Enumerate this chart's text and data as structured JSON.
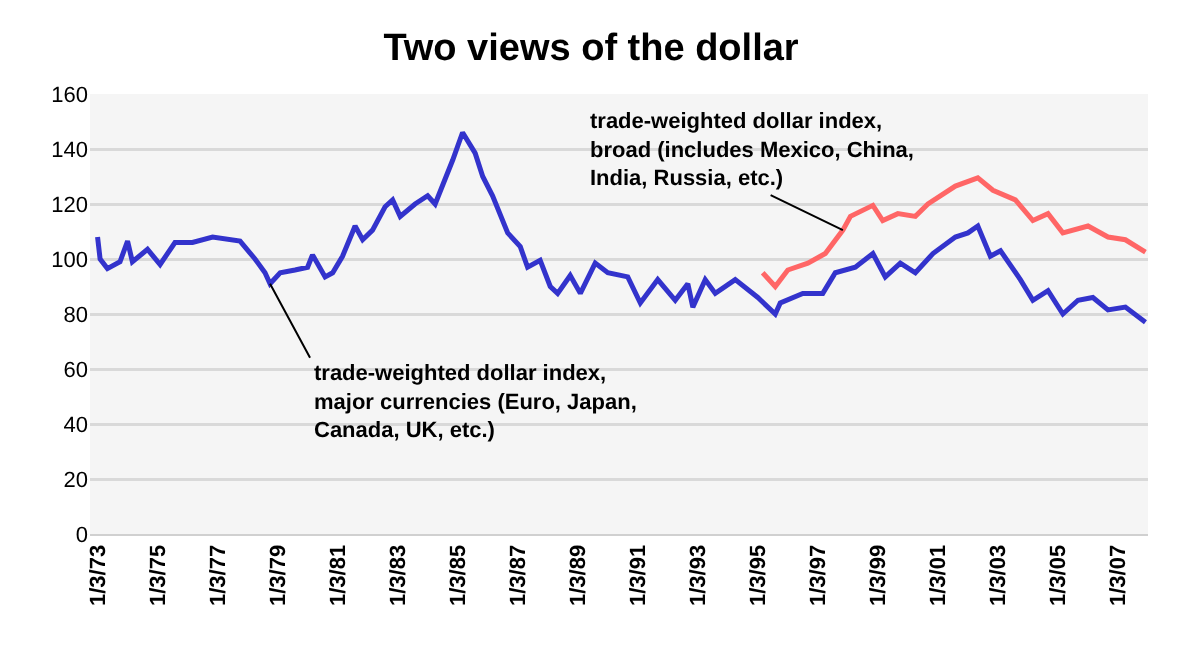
{
  "chart_data": {
    "type": "line",
    "title": "Two views of the dollar",
    "xlim": [
      "1972-10",
      "2008-01"
    ],
    "xticks": [
      {
        "value": "1973-01-03",
        "label": "1/3/73"
      },
      {
        "value": "1975-01-03",
        "label": "1/3/75"
      },
      {
        "value": "1977-01-03",
        "label": "1/3/77"
      },
      {
        "value": "1979-01-03",
        "label": "1/3/79"
      },
      {
        "value": "1981-01-03",
        "label": "1/3/81"
      },
      {
        "value": "1983-01-03",
        "label": "1/3/83"
      },
      {
        "value": "1985-01-03",
        "label": "1/3/85"
      },
      {
        "value": "1987-01-03",
        "label": "1/3/87"
      },
      {
        "value": "1989-01-03",
        "label": "1/3/89"
      },
      {
        "value": "1991-01-03",
        "label": "1/3/91"
      },
      {
        "value": "1993-01-03",
        "label": "1/3/93"
      },
      {
        "value": "1995-01-03",
        "label": "1/3/95"
      },
      {
        "value": "1997-01-03",
        "label": "1/3/97"
      },
      {
        "value": "1999-01-03",
        "label": "1/3/99"
      },
      {
        "value": "2001-01-03",
        "label": "1/3/01"
      },
      {
        "value": "2003-01-03",
        "label": "1/3/03"
      },
      {
        "value": "2005-01-03",
        "label": "1/3/05"
      },
      {
        "value": "2007-01-03",
        "label": "1/3/07"
      }
    ],
    "ylim": [
      0,
      160
    ],
    "yticks": [
      0,
      20,
      40,
      60,
      80,
      100,
      120,
      140,
      160
    ],
    "grid": "y",
    "marker": "none",
    "line_style": "solid",
    "series": [
      {
        "color": "#3333cc",
        "x": [
          "1973-01",
          "1973-02",
          "1973-05",
          "1973-10",
          "1974-01",
          "1974-03",
          "1974-09",
          "1975-02",
          "1975-08",
          "1976-03",
          "1976-11",
          "1977-10",
          "1978-04",
          "1978-08",
          "1978-10",
          "1979-02",
          "1979-08",
          "1980-01",
          "1980-03",
          "1980-08",
          "1980-11",
          "1981-03",
          "1981-08",
          "1981-11",
          "1982-03",
          "1982-08",
          "1982-11",
          "1983-02",
          "1983-08",
          "1984-01",
          "1984-04",
          "1984-11",
          "1985-03",
          "1985-08",
          "1985-11",
          "1986-03",
          "1986-09",
          "1987-02",
          "1987-05",
          "1987-10",
          "1988-02",
          "1988-05",
          "1988-10",
          "1989-02",
          "1989-08",
          "1990-01",
          "1990-09",
          "1991-02",
          "1991-09",
          "1992-04",
          "1992-09",
          "1992-11",
          "1993-04",
          "1993-08",
          "1994-04",
          "1995-01",
          "1995-08",
          "1995-10",
          "1996-07",
          "1997-03",
          "1997-08",
          "1998-04",
          "1998-11",
          "1999-04",
          "1999-10",
          "2000-04",
          "2000-11",
          "2001-08",
          "2002-01",
          "2002-05",
          "2002-10",
          "2003-02",
          "2003-10",
          "2004-03",
          "2004-09",
          "2005-03",
          "2005-09",
          "2006-03",
          "2006-09",
          "2007-04",
          "2007-12"
        ],
        "values": [
          108,
          100,
          96.5,
          99,
          106.5,
          99,
          103.5,
          98,
          106,
          106,
          108,
          106.5,
          100,
          95,
          91,
          95,
          96,
          97,
          101.5,
          93.5,
          95,
          101,
          112,
          107,
          110.5,
          119,
          121.5,
          115.5,
          120,
          123,
          120,
          136,
          146,
          138.5,
          130,
          123,
          109.5,
          104.5,
          97,
          99.5,
          90,
          87.5,
          94,
          87.5,
          98.5,
          95,
          93.5,
          84,
          92.5,
          85,
          91,
          82.5,
          92.5,
          87.5,
          92.5,
          86,
          80,
          84,
          87.5,
          87.5,
          95,
          97,
          102,
          93.5,
          98.5,
          95,
          102,
          108,
          109.5,
          112,
          101,
          103,
          92.5,
          85,
          88.5,
          80,
          85,
          86,
          81.5,
          82.5,
          77
        ]
      },
      {
        "color": "#ff6666",
        "x": [
          "1995-03",
          "1995-08",
          "1996-01",
          "1996-09",
          "1997-04",
          "1997-11",
          "1998-02",
          "1998-11",
          "1999-03",
          "1999-09",
          "2000-04",
          "2000-09",
          "2001-08",
          "2002-05",
          "2002-11",
          "2003-08",
          "2004-03",
          "2004-09",
          "2005-03",
          "2006-01",
          "2006-09",
          "2007-04",
          "2007-12"
        ],
        "values": [
          95,
          90,
          96,
          98.5,
          102,
          110.5,
          115.5,
          119.5,
          114,
          116.5,
          115.5,
          120,
          126.5,
          129.5,
          125,
          121.5,
          114,
          116.5,
          109.5,
          112,
          108,
          107,
          102.5
        ]
      }
    ],
    "annotations": [
      {
        "text": "trade-weighted dollar index,\nmajor currencies (Euro, Japan,\nCanada, UK, etc.)",
        "x": "1978-10",
        "y": 91
      },
      {
        "text": "trade-weighted dollar index,\nbroad (includes Mexico, China,\nIndia, Russia, etc.)",
        "x": "1997-11",
        "y": 110.5
      }
    ]
  }
}
